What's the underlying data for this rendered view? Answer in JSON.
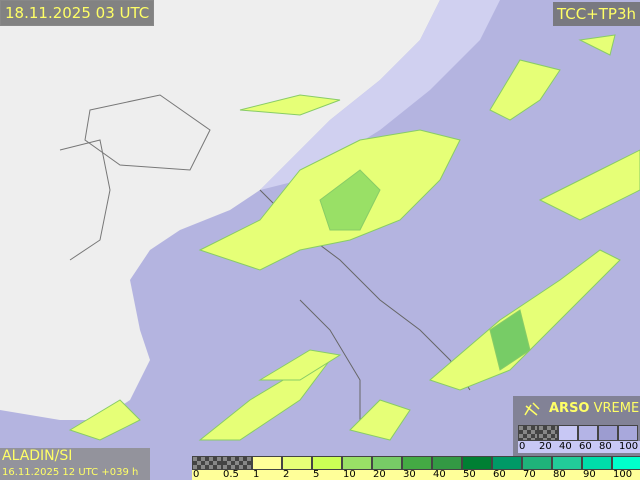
{
  "header": {
    "valid_time": "18.11.2025 03 UTC",
    "product": "TCC+TP3h"
  },
  "footer": {
    "model": "ALADIN/SI",
    "run": "16.11.2025 12 UTC +039 h"
  },
  "logo": {
    "text_bold": "ARSO",
    "text": " VREME",
    "icon": "satellite-dish-icon"
  },
  "cloud_legend": {
    "labels": [
      "0",
      "20",
      "40",
      "60",
      "80",
      "100"
    ],
    "colors": [
      "checker",
      "checker",
      "#c8c8f5",
      "#b4b4e6",
      "#9c9cd0",
      "#a8a8dc"
    ]
  },
  "precip_legend": {
    "labels": [
      "0",
      "0.5",
      "1",
      "2",
      "5",
      "10",
      "20",
      "30",
      "40",
      "50",
      "60",
      "70",
      "80",
      "90",
      "100"
    ],
    "colors": [
      "checker",
      "checker",
      "#ffff99",
      "#e6ff77",
      "#ccff55",
      "#99e066",
      "#77cc66",
      "#44aa44",
      "#339944",
      "#007f33",
      "#009966",
      "#1fb37a",
      "#22cc99",
      "#00ddaa",
      "#00ffcc"
    ]
  },
  "colors": {
    "land": "#eeeeee",
    "cloud_cover": "#b4b4e0",
    "precip": "#e6ff77",
    "label_text": "#ffff66"
  }
}
